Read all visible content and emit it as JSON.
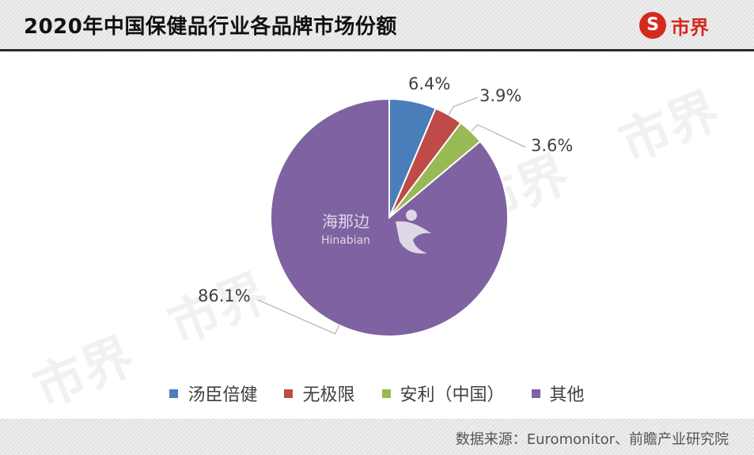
{
  "header": {
    "title": "2020年中国保健品行业各品牌市场份额"
  },
  "logo": {
    "symbol": "S",
    "text": "市界",
    "color": "#d42a1e"
  },
  "watermark": {
    "brand": "市界",
    "center_cn": "海那边",
    "center_en": "Hinabian"
  },
  "footer": {
    "source": "数据来源：Euromonitor、前瞻产业研究院"
  },
  "chart_data": {
    "type": "pie",
    "title": "2020年中国保健品行业各品牌市场份额",
    "unit": "%",
    "legend_position": "bottom",
    "series": [
      {
        "name": "汤臣倍健",
        "value": 6.4,
        "label": "6.4%",
        "color": "#4a7ebb"
      },
      {
        "name": "无极限",
        "value": 3.9,
        "label": "3.9%",
        "color": "#be4b48"
      },
      {
        "name": "安利（中国）",
        "value": 3.6,
        "label": "3.6%",
        "color": "#98b954"
      },
      {
        "name": "其他",
        "value": 86.1,
        "label": "86.1%",
        "color": "#7e62a1"
      }
    ]
  }
}
